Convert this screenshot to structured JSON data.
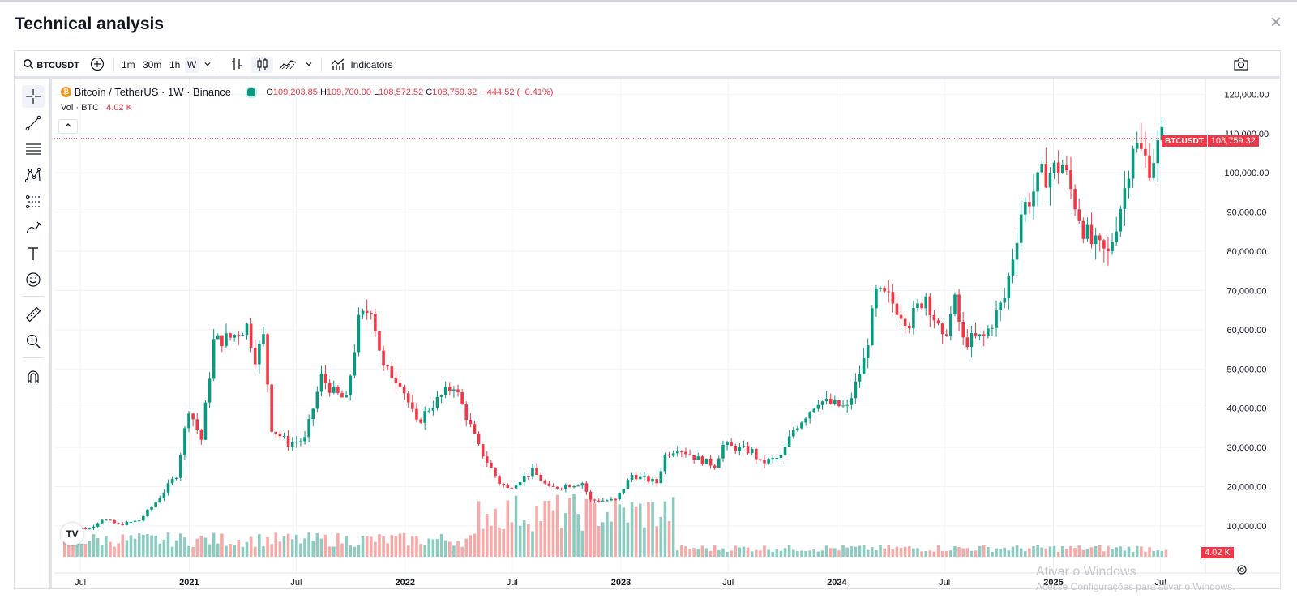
{
  "modal": {
    "title": "Technical analysis"
  },
  "toolbar": {
    "symbol": "BTCUSDT",
    "intervals": [
      "1m",
      "30m",
      "1h",
      "W"
    ],
    "active_interval": "W",
    "indicators_label": "Indicators"
  },
  "legend": {
    "name": "Bitcoin / TetherUS · 1W · Binance",
    "o_label": "O",
    "o": "109,203.85",
    "h_label": "H",
    "h": "109,700.00",
    "l_label": "L",
    "l": "108,572.52",
    "c_label": "C",
    "c": "108,759.32",
    "change": "−444.52 (−0.41%)",
    "vol_label": "Vol · BTC",
    "vol_value": "4.02 K"
  },
  "price_tag": {
    "symbol": "BTCUSDT",
    "price": "108,759.32"
  },
  "volume_tag": "4.02 K",
  "watermark": {
    "line1": "Ativar o Windows",
    "line2": "Acesse Configurações para ativar o Windows."
  },
  "colors": {
    "up": "#089981",
    "down": "#f23645",
    "up_vol": "#8ccbc0",
    "down_vol": "#f7a9a7"
  },
  "chart_data": {
    "type": "candlestick",
    "interval": "1W",
    "y_ticks": [
      10000,
      20000,
      30000,
      40000,
      50000,
      60000,
      70000,
      80000,
      90000,
      100000,
      110000,
      120000
    ],
    "y_tick_labels": [
      "10,000.00",
      "20,000.00",
      "30,000.00",
      "40,000.00",
      "50,000.00",
      "60,000.00",
      "70,000.00",
      "80,000.00",
      "90,000.00",
      "100,000.00",
      "110,000.00",
      "120,000.00"
    ],
    "ylim": [
      -2000,
      124000
    ],
    "x_labels": [
      {
        "label": "Jul",
        "date": "2020-07-01"
      },
      {
        "label": "2021",
        "date": "2021-01-01"
      },
      {
        "label": "Jul",
        "date": "2021-07-01"
      },
      {
        "label": "2022",
        "date": "2022-01-01"
      },
      {
        "label": "Jul",
        "date": "2022-07-01"
      },
      {
        "label": "2023",
        "date": "2023-01-01"
      },
      {
        "label": "Jul",
        "date": "2023-07-01"
      },
      {
        "label": "2024",
        "date": "2024-01-01"
      },
      {
        "label": "Jul",
        "date": "2024-07-01"
      },
      {
        "label": "2025",
        "date": "2025-01-01"
      },
      {
        "label": "Jul",
        "date": "2025-07-01"
      }
    ],
    "x_range": [
      "2020-05-18",
      "2025-09-15"
    ],
    "first_bar_date": "2020-06-01",
    "price_path": [
      [
        "2020-06-01",
        9500
      ],
      [
        "2020-07-20",
        9300
      ],
      [
        "2020-08-10",
        11800
      ],
      [
        "2020-09-07",
        10300
      ],
      [
        "2020-10-12",
        11400
      ],
      [
        "2020-11-09",
        16000
      ],
      [
        "2020-12-14",
        23000
      ],
      [
        "2021-01-04",
        40000
      ],
      [
        "2021-01-25",
        32000
      ],
      [
        "2021-02-15",
        57000
      ],
      [
        "2021-03-15",
        58000
      ],
      [
        "2021-04-12",
        61000
      ],
      [
        "2021-04-26",
        53000
      ],
      [
        "2021-05-10",
        58000
      ],
      [
        "2021-05-24",
        35000
      ],
      [
        "2021-06-21",
        31000
      ],
      [
        "2021-07-19",
        32000
      ],
      [
        "2021-08-16",
        48000
      ],
      [
        "2021-09-06",
        44000
      ],
      [
        "2021-09-27",
        42000
      ],
      [
        "2021-10-18",
        62000
      ],
      [
        "2021-11-08",
        66000
      ],
      [
        "2021-11-29",
        50000
      ],
      [
        "2021-12-27",
        47000
      ],
      [
        "2022-01-24",
        36000
      ],
      [
        "2022-02-14",
        40000
      ],
      [
        "2022-03-28",
        46000
      ],
      [
        "2022-05-09",
        30000
      ],
      [
        "2022-06-13",
        21000
      ],
      [
        "2022-06-27",
        19500
      ],
      [
        "2022-08-08",
        24000
      ],
      [
        "2022-09-05",
        19500
      ],
      [
        "2022-10-31",
        21000
      ],
      [
        "2022-11-14",
        16500
      ],
      [
        "2022-12-26",
        16500
      ],
      [
        "2023-01-23",
        23000
      ],
      [
        "2023-03-06",
        21000
      ],
      [
        "2023-03-20",
        28000
      ],
      [
        "2023-04-10",
        30000
      ],
      [
        "2023-05-15",
        27000
      ],
      [
        "2023-06-12",
        25500
      ],
      [
        "2023-06-26",
        30500
      ],
      [
        "2023-08-14",
        29000
      ],
      [
        "2023-08-28",
        26000
      ],
      [
        "2023-10-02",
        27500
      ],
      [
        "2023-10-23",
        34500
      ],
      [
        "2023-12-04",
        42000
      ],
      [
        "2024-01-22",
        40000
      ],
      [
        "2024-02-19",
        52000
      ],
      [
        "2024-03-11",
        69000
      ],
      [
        "2024-04-01",
        68000
      ],
      [
        "2024-05-06",
        62000
      ],
      [
        "2024-06-03",
        69000
      ],
      [
        "2024-07-01",
        57000
      ],
      [
        "2024-07-22",
        67000
      ],
      [
        "2024-08-05",
        57000
      ],
      [
        "2024-09-09",
        58000
      ],
      [
        "2024-10-14",
        68000
      ],
      [
        "2024-11-11",
        90000
      ],
      [
        "2024-12-16",
        99000
      ],
      [
        "2025-01-20",
        102000
      ],
      [
        "2025-02-24",
        86000
      ],
      [
        "2025-03-10",
        82000
      ],
      [
        "2025-04-07",
        79000
      ],
      [
        "2025-05-05",
        96000
      ],
      [
        "2025-05-19",
        108000
      ],
      [
        "2025-06-16",
        102000
      ],
      [
        "2025-07-07",
        108759
      ]
    ],
    "last": {
      "open": 109203.85,
      "high": 109700.0,
      "low": 108572.52,
      "close": 108759.32,
      "volume": "4.02 K"
    }
  }
}
